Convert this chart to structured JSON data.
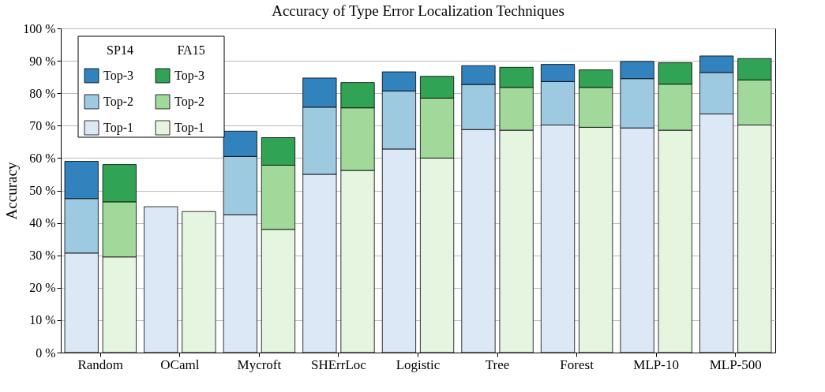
{
  "chart_data": {
    "type": "bar",
    "title": "Accuracy of Type Error Localization Techniques",
    "ylabel": "Accuracy",
    "annotations": [
      "SP14",
      "FA15"
    ],
    "categories": [
      "Random",
      "OCaml",
      "Mycroft",
      "SHErrLoc",
      "Logistic",
      "Tree",
      "Forest",
      "MLP-10",
      "MLP-500"
    ],
    "series": [
      {
        "name": "Top-1",
        "color": "#dce8f5",
        "values": [
          30.7,
          45,
          42.5,
          55,
          62.8,
          68.8,
          70.2,
          69.3,
          73.6
        ],
        "base": [
          0,
          0,
          0,
          0,
          0,
          0,
          0,
          0,
          0
        ]
      },
      {
        "name": "Top-2",
        "color": "#9ecae1",
        "values": [
          16.8,
          null,
          18,
          20.7,
          17.9,
          13.9,
          13.4,
          15.2,
          12.8
        ],
        "base": [
          30.7,
          null,
          42.5,
          55,
          62.8,
          68.8,
          70.2,
          69.3,
          73.6
        ]
      },
      {
        "name": "Top-3",
        "color": "#3182bd",
        "values": [
          11.5,
          null,
          7.8,
          9,
          5.9,
          5.8,
          5.3,
          5.3,
          5.1
        ],
        "base": [
          47.5,
          null,
          60.5,
          75.7,
          80.7,
          82.7,
          83.6,
          84.5,
          86.4
        ]
      },
      {
        "name": "Top-1",
        "color": "#e5f5e0",
        "values": [
          29.5,
          43.5,
          38,
          56.2,
          60,
          68.6,
          69.5,
          68.6,
          70.2
        ],
        "base": [
          0,
          0,
          0,
          0,
          0,
          0,
          0,
          0,
          0
        ]
      },
      {
        "name": "Top-2",
        "color": "#a1d99b",
        "values": [
          17,
          null,
          19.8,
          19.3,
          18.5,
          13.2,
          12.3,
          14.2,
          13.9
        ],
        "base": [
          29.5,
          null,
          38,
          56.2,
          60,
          68.6,
          69.5,
          68.6,
          70.2
        ]
      },
      {
        "name": "Top-3",
        "color": "#31a354",
        "values": [
          11.5,
          null,
          8.5,
          7.8,
          6.7,
          6.2,
          5.4,
          6.6,
          6.6
        ],
        "base": [
          46.5,
          null,
          57.8,
          75.5,
          78.5,
          81.8,
          81.8,
          82.8,
          84.1
        ]
      }
    ],
    "ylim": [
      0,
      100
    ],
    "yticks": [
      {
        "value": 0,
        "label": "0 %"
      },
      {
        "value": 10,
        "label": "10 %"
      },
      {
        "value": 20,
        "label": "20 %"
      },
      {
        "value": 30,
        "label": "30 %"
      },
      {
        "value": 40,
        "label": "40 %"
      },
      {
        "value": 50,
        "label": "50 %"
      },
      {
        "value": 60,
        "label": "60 %"
      },
      {
        "value": 70,
        "label": "70 %"
      },
      {
        "value": 80,
        "label": "80 %"
      },
      {
        "value": 90,
        "label": "90 %"
      },
      {
        "value": 100,
        "label": "100 %"
      }
    ],
    "grid": "y",
    "legend": "top left"
  }
}
